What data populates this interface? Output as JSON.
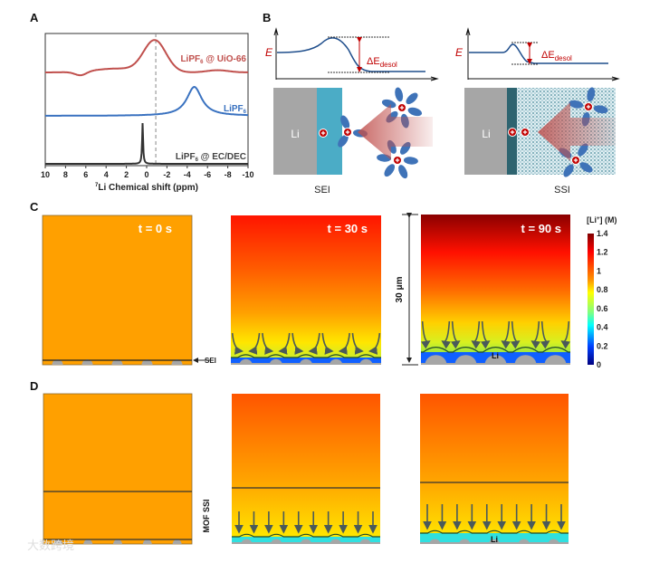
{
  "panels": {
    "a": "A",
    "b": "B",
    "c": "C",
    "d": "D"
  },
  "chart_data": {
    "type": "line",
    "title": "",
    "xlabel_sup": "7",
    "xlabel": "Li Chemical shift (ppm)",
    "ylabel": "",
    "xlim": [
      10,
      -10
    ],
    "xticks": [
      10,
      8,
      6,
      4,
      2,
      0,
      -2,
      -4,
      -6,
      -8,
      -10
    ],
    "reference_line_ppm": -0.9,
    "series": [
      {
        "name_main": "LiPF",
        "name_sub": "6",
        "name_rest": " @ UiO-66",
        "color": "#c0504d",
        "peak_ppm": -0.8,
        "width_ppm": 1.1,
        "shape": "broad"
      },
      {
        "name_main": "LiPF",
        "name_sub": "6",
        "name_rest": "",
        "color": "#3a72c0",
        "peak_ppm": -4.7,
        "width_ppm": 0.9,
        "shape": "lorentzian"
      },
      {
        "name_main": "LiPF",
        "name_sub": "6",
        "name_rest": " @ EC/DEC",
        "color": "#333333",
        "peak_ppm": 0.4,
        "width_ppm": 0.06,
        "shape": "sharp"
      }
    ]
  },
  "schematic": {
    "energy_label": "E",
    "delta_main": "ΔE",
    "delta_sub": "desol",
    "li": "Li",
    "sei": "SEI",
    "ssi": "SSI",
    "colors": {
      "li": "#a6a6a6",
      "sei": "#4bacc6",
      "ssi_layer": "#2e6470",
      "molecule": "#3f73b8",
      "ion": "#c00000",
      "arrow": "#c0504d"
    }
  },
  "simulation": {
    "times": [
      "t = 0 s",
      "t = 30 s",
      "t = 90 s"
    ],
    "sei_label": "SEI",
    "thickness_label": "30 μm",
    "li_label": "Li",
    "mof_ssi_label": "MOF SSI",
    "colorbar": {
      "title_main": "[Li",
      "title_sup": "+",
      "title_rest": "]  (M)",
      "ticks": [
        "1.4",
        "1.2",
        "1",
        "0.8",
        "0.6",
        "0.4",
        "0.2",
        "0"
      ],
      "range": [
        0,
        1.4
      ]
    }
  },
  "watermark": "大数跨境"
}
